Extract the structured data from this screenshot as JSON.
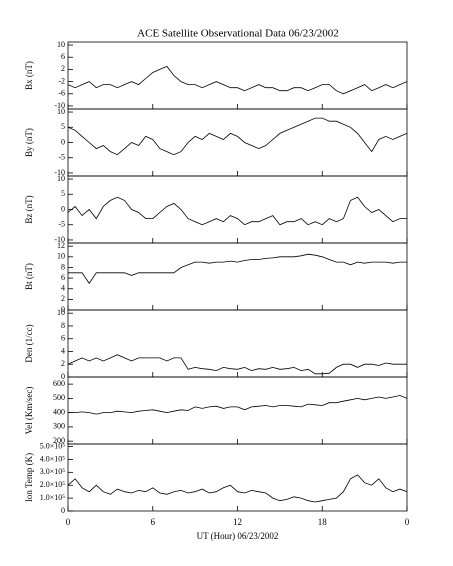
{
  "chart_data": [
    {
      "type": "line",
      "title": "ACE Satellite Observational Data   06/23/2002",
      "ylabel": "Bx (nT)",
      "color": "#000000",
      "x": [
        0,
        0.5,
        1,
        1.5,
        2,
        2.5,
        3,
        3.5,
        4,
        4.5,
        5,
        5.5,
        6,
        6.5,
        7,
        7.5,
        8,
        8.5,
        9,
        9.5,
        10,
        10.5,
        11,
        11.5,
        12,
        12.5,
        13,
        13.5,
        14,
        14.5,
        15,
        15.5,
        16,
        16.5,
        17,
        17.5,
        18,
        18.5,
        19,
        19.5,
        20,
        20.5,
        21,
        21.5,
        22,
        22.5,
        23,
        23.5,
        24
      ],
      "values": [
        -3,
        -4,
        -3,
        -2,
        -4,
        -3,
        -3,
        -4,
        -3,
        -2,
        -3,
        -1,
        1,
        2,
        3,
        0,
        -2,
        -3,
        -3,
        -4,
        -3,
        -2,
        -3,
        -4,
        -4,
        -5,
        -4,
        -3,
        -4,
        -4,
        -5,
        -5,
        -4,
        -4,
        -5,
        -4,
        -3,
        -3,
        -5,
        -6,
        -5,
        -4,
        -3,
        -5,
        -4,
        -3,
        -4,
        -3,
        -2
      ],
      "xlim": [
        0,
        24
      ],
      "xticks": [
        0,
        6,
        12,
        18,
        24
      ],
      "ylim": [
        -11,
        11
      ],
      "yticks": [
        10,
        6,
        2,
        -2,
        -6,
        -10
      ]
    },
    {
      "type": "line",
      "ylabel": "By (nT)",
      "color": "#000000",
      "x": [
        0,
        0.5,
        1,
        1.5,
        2,
        2.5,
        3,
        3.5,
        4,
        4.5,
        5,
        5.5,
        6,
        6.5,
        7,
        7.5,
        8,
        8.5,
        9,
        9.5,
        10,
        10.5,
        11,
        11.5,
        12,
        12.5,
        13,
        13.5,
        14,
        14.5,
        15,
        15.5,
        16,
        16.5,
        17,
        17.5,
        18,
        18.5,
        19,
        19.5,
        20,
        20.5,
        21,
        21.5,
        22,
        22.5,
        23,
        23.5,
        24
      ],
      "values": [
        5,
        4,
        2,
        0,
        -2,
        -1,
        -3,
        -4,
        -2,
        0,
        -1,
        2,
        1,
        -2,
        -3,
        -4,
        -3,
        0,
        2,
        1,
        3,
        2,
        1,
        3,
        2,
        0,
        -1,
        -2,
        -1,
        1,
        3,
        4,
        5,
        6,
        7,
        8,
        8,
        7,
        7,
        6,
        5,
        3,
        0,
        -3,
        1,
        2,
        1,
        2,
        3
      ],
      "xlim": [
        0,
        24
      ],
      "xticks": [
        0,
        6,
        12,
        18,
        24
      ],
      "ylim": [
        -11,
        11
      ],
      "yticks": [
        10,
        5,
        0,
        -5,
        -10
      ]
    },
    {
      "type": "line",
      "ylabel": "Bz (nT)",
      "color": "#000000",
      "x": [
        0,
        0.5,
        1,
        1.5,
        2,
        2.5,
        3,
        3.5,
        4,
        4.5,
        5,
        5.5,
        6,
        6.5,
        7,
        7.5,
        8,
        8.5,
        9,
        9.5,
        10,
        10.5,
        11,
        11.5,
        12,
        12.5,
        13,
        13.5,
        14,
        14.5,
        15,
        15.5,
        16,
        16.5,
        17,
        17.5,
        18,
        18.5,
        19,
        19.5,
        20,
        20.5,
        21,
        21.5,
        22,
        22.5,
        23,
        23.5,
        24
      ],
      "values": [
        -1,
        1,
        -2,
        0,
        -3,
        1,
        3,
        4,
        3,
        0,
        -1,
        -3,
        -3,
        -1,
        1,
        2,
        0,
        -3,
        -4,
        -5,
        -4,
        -3,
        -4,
        -2,
        -3,
        -5,
        -4,
        -4,
        -3,
        -2,
        -5,
        -4,
        -4,
        -3,
        -5,
        -4,
        -5,
        -3,
        -4,
        -3,
        3,
        4,
        1,
        -1,
        0,
        -2,
        -4,
        -3,
        -3
      ],
      "xlim": [
        0,
        24
      ],
      "xticks": [
        0,
        6,
        12,
        18,
        24
      ],
      "ylim": [
        -11,
        11
      ],
      "yticks": [
        10,
        5,
        0,
        -5,
        -10
      ]
    },
    {
      "type": "line",
      "ylabel": "Bt (nT)",
      "color": "#000000",
      "x": [
        0,
        0.5,
        1,
        1.5,
        2,
        2.5,
        3,
        3.5,
        4,
        4.5,
        5,
        5.5,
        6,
        6.5,
        7,
        7.5,
        8,
        8.5,
        9,
        9.5,
        10,
        10.5,
        11,
        11.5,
        12,
        12.5,
        13,
        13.5,
        14,
        14.5,
        15,
        15.5,
        16,
        16.5,
        17,
        17.5,
        18,
        18.5,
        19,
        19.5,
        20,
        20.5,
        21,
        21.5,
        22,
        22.5,
        23,
        23.5,
        24
      ],
      "values": [
        7,
        7,
        7,
        5,
        7,
        7,
        7,
        7,
        7,
        6.5,
        7,
        7,
        7,
        7,
        7,
        7,
        8,
        8.5,
        9,
        9,
        8.8,
        9,
        9,
        9.2,
        9,
        9.3,
        9.5,
        9.5,
        9.7,
        9.8,
        10,
        10,
        10,
        10.2,
        10.5,
        10.3,
        10,
        9.5,
        9,
        9,
        8.5,
        9,
        8.8,
        9,
        9,
        9,
        8.8,
        9,
        9
      ],
      "xlim": [
        0,
        24
      ],
      "xticks": [
        0,
        6,
        12,
        18,
        24
      ],
      "ylim": [
        0,
        12.6
      ],
      "yticks": [
        12,
        10,
        8,
        6,
        4,
        2,
        0
      ]
    },
    {
      "type": "line",
      "ylabel": "Den (1/cc)",
      "color": "#000000",
      "x": [
        0,
        0.5,
        1,
        1.5,
        2,
        2.5,
        3,
        3.5,
        4,
        4.5,
        5,
        5.5,
        6,
        6.5,
        7,
        7.5,
        8,
        8.5,
        9,
        9.5,
        10,
        10.5,
        11,
        11.5,
        12,
        12.5,
        13,
        13.5,
        14,
        14.5,
        15,
        15.5,
        16,
        16.5,
        17,
        17.5,
        18,
        18.5,
        19,
        19.5,
        20,
        20.5,
        21,
        21.5,
        22,
        22.5,
        23,
        23.5,
        24
      ],
      "values": [
        2,
        2.5,
        3,
        2.5,
        3,
        2.5,
        3,
        3.5,
        3,
        2.5,
        3,
        3,
        3,
        3,
        2.5,
        3,
        3,
        1.2,
        1.5,
        1.3,
        1.2,
        1,
        1.5,
        1.3,
        1.2,
        1.5,
        1,
        1.3,
        1.2,
        1.5,
        1.2,
        1.3,
        1.5,
        1,
        1.2,
        0.5,
        0.5,
        0.6,
        1.5,
        2,
        2,
        1.5,
        2,
        2,
        1.8,
        2.2,
        2,
        2,
        2
      ],
      "xlim": [
        0,
        24
      ],
      "xticks": [
        0,
        6,
        12,
        18,
        24
      ],
      "ylim": [
        0,
        10.5
      ],
      "yticks": [
        10,
        8,
        6,
        4,
        2,
        0
      ]
    },
    {
      "type": "line",
      "ylabel": "Vel (Km/sec)",
      "color": "#000000",
      "x": [
        0,
        0.5,
        1,
        1.5,
        2,
        2.5,
        3,
        3.5,
        4,
        4.5,
        5,
        5.5,
        6,
        6.5,
        7,
        7.5,
        8,
        8.5,
        9,
        9.5,
        10,
        10.5,
        11,
        11.5,
        12,
        12.5,
        13,
        13.5,
        14,
        14.5,
        15,
        15.5,
        16,
        16.5,
        17,
        17.5,
        18,
        18.5,
        19,
        19.5,
        20,
        20.5,
        21,
        21.5,
        22,
        22.5,
        23,
        23.5,
        24
      ],
      "values": [
        400,
        400,
        405,
        400,
        390,
        400,
        400,
        410,
        405,
        400,
        410,
        415,
        420,
        410,
        400,
        410,
        420,
        415,
        440,
        430,
        440,
        445,
        430,
        440,
        440,
        420,
        440,
        445,
        450,
        440,
        450,
        450,
        445,
        440,
        460,
        455,
        450,
        470,
        470,
        480,
        490,
        500,
        490,
        500,
        510,
        500,
        510,
        520,
        500
      ],
      "xlim": [
        0,
        24
      ],
      "xticks": [
        0,
        6,
        12,
        18,
        24
      ],
      "ylim": [
        180,
        650
      ],
      "yticks": [
        600,
        500,
        400,
        300,
        200
      ]
    },
    {
      "type": "line",
      "ylabel": "Ion Temp (K)",
      "xlabel": "UT (Hour)   06/23/2002",
      "color": "#000000",
      "x": [
        0,
        0.5,
        1,
        1.5,
        2,
        2.5,
        3,
        3.5,
        4,
        4.5,
        5,
        5.5,
        6,
        6.5,
        7,
        7.5,
        8,
        8.5,
        9,
        9.5,
        10,
        10.5,
        11,
        11.5,
        12,
        12.5,
        13,
        13.5,
        14,
        14.5,
        15,
        15.5,
        16,
        16.5,
        17,
        17.5,
        18,
        18.5,
        19,
        19.5,
        20,
        20.5,
        21,
        21.5,
        22,
        22.5,
        23,
        23.5,
        24
      ],
      "values": [
        200000,
        250000,
        180000,
        150000,
        200000,
        150000,
        130000,
        170000,
        150000,
        140000,
        160000,
        150000,
        180000,
        140000,
        130000,
        150000,
        160000,
        140000,
        150000,
        170000,
        140000,
        150000,
        180000,
        200000,
        150000,
        140000,
        160000,
        150000,
        140000,
        100000,
        80000,
        90000,
        110000,
        100000,
        80000,
        70000,
        80000,
        90000,
        100000,
        150000,
        250000,
        280000,
        220000,
        200000,
        250000,
        180000,
        150000,
        170000,
        150000
      ],
      "xlim": [
        0,
        24
      ],
      "xticks": [
        0,
        6,
        12,
        18,
        {
          "value": 24,
          "label": "0"
        }
      ],
      "ylim": [
        0,
        520000
      ],
      "yticks": [
        {
          "value": 500000,
          "label": "5.0×10⁵"
        },
        {
          "value": 400000,
          "label": "4.0×10⁵"
        },
        {
          "value": 300000,
          "label": "3.0×10⁵"
        },
        {
          "value": 200000,
          "label": "2.0×10⁵"
        },
        {
          "value": 100000,
          "label": "1.0×10⁵"
        },
        0
      ]
    }
  ]
}
